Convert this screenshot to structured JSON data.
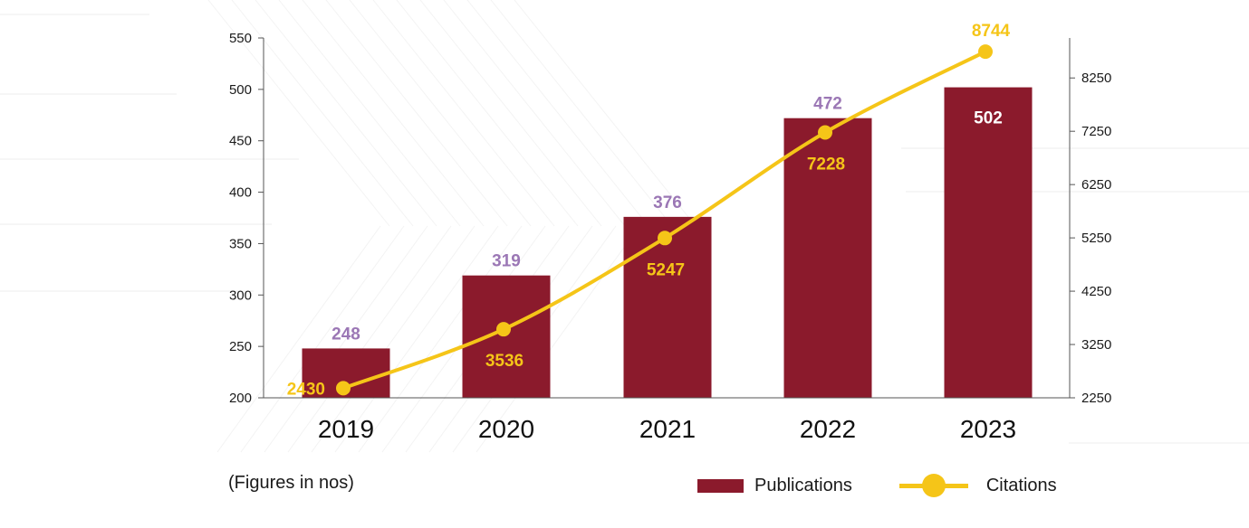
{
  "chart_data": {
    "type": "bar+line",
    "categories": [
      "2019",
      "2020",
      "2021",
      "2022",
      "2023"
    ],
    "series": [
      {
        "name": "Publications",
        "type": "bar",
        "axis": "left",
        "values": [
          248,
          319,
          376,
          472,
          502
        ],
        "color": "#8b1a2c",
        "label_color": "#9b77b5",
        "inside_label_color": "#ffffff"
      },
      {
        "name": "Citations",
        "type": "line",
        "axis": "right",
        "values": [
          2430,
          3536,
          5247,
          7228,
          8744
        ],
        "color": "#f5c518",
        "label_color": "#f5c518"
      }
    ],
    "y_left": {
      "min": 200,
      "max": 550,
      "ticks": [
        "200",
        "250",
        "300",
        "350",
        "400",
        "450",
        "500",
        "550"
      ]
    },
    "y_right": {
      "min": 2250,
      "max": 9000,
      "ticks": [
        "2250",
        "3250",
        "4250",
        "5250",
        "6250",
        "7250",
        "8250"
      ]
    },
    "legend_position": "bottom-right",
    "grid": false
  },
  "footnote": "(Figures in nos)",
  "legend": {
    "bar_label": "Publications",
    "line_label": "Citations"
  }
}
